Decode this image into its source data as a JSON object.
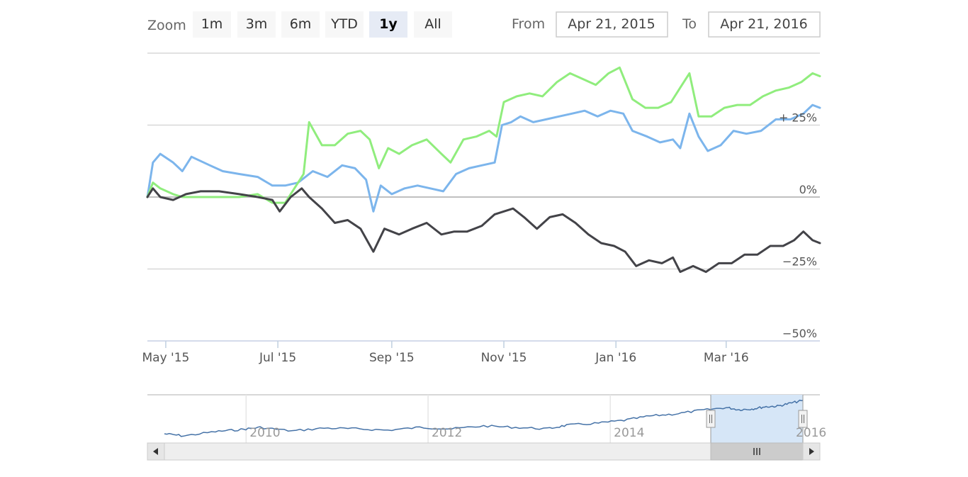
{
  "range_selector": {
    "zoom_label": "Zoom",
    "buttons": [
      {
        "label": "1m",
        "active": false
      },
      {
        "label": "3m",
        "active": false
      },
      {
        "label": "6m",
        "active": false
      },
      {
        "label": "YTD",
        "active": false
      },
      {
        "label": "1y",
        "active": true
      },
      {
        "label": "All",
        "active": false
      }
    ],
    "from_label": "From",
    "from_value": "Apr 21, 2015",
    "to_label": "To",
    "to_value": "Apr 21, 2016"
  },
  "navigator": {
    "x_tick_labels": [
      "2010",
      "2012",
      "2014",
      "2016"
    ],
    "series_color": "#4572a7",
    "mask_color": "#d6e6f7"
  },
  "chart_data": {
    "type": "line",
    "title": "",
    "x_range": [
      "2015-04-21",
      "2016-04-21"
    ],
    "ylim": [
      -50,
      50
    ],
    "y_ticks": [
      -50,
      -25,
      0,
      25
    ],
    "y_tick_labels": [
      "−50%",
      "−25%",
      "0%",
      "+ 25%"
    ],
    "x_tick_labels": [
      "May '15",
      "Jul '15",
      "Sep '15",
      "Nov '15",
      "Jan '16",
      "Mar '16"
    ],
    "x_tick_dates": [
      "2015-05-01",
      "2015-07-01",
      "2015-09-01",
      "2015-11-01",
      "2016-01-01",
      "2016-03-01"
    ],
    "grid": true,
    "series": [
      {
        "color": "#7cb5ec",
        "points": [
          [
            "2015-04-21",
            0
          ],
          [
            "2015-04-24",
            12
          ],
          [
            "2015-04-28",
            15
          ],
          [
            "2015-05-05",
            12
          ],
          [
            "2015-05-10",
            9
          ],
          [
            "2015-05-15",
            14
          ],
          [
            "2015-05-25",
            11
          ],
          [
            "2015-06-01",
            9
          ],
          [
            "2015-06-10",
            8
          ],
          [
            "2015-06-20",
            7
          ],
          [
            "2015-06-28",
            4
          ],
          [
            "2015-07-05",
            4
          ],
          [
            "2015-07-12",
            5
          ],
          [
            "2015-07-20",
            9
          ],
          [
            "2015-07-28",
            7
          ],
          [
            "2015-08-05",
            11
          ],
          [
            "2015-08-12",
            10
          ],
          [
            "2015-08-18",
            6
          ],
          [
            "2015-08-22",
            -5
          ],
          [
            "2015-08-26",
            4
          ],
          [
            "2015-09-01",
            1
          ],
          [
            "2015-09-08",
            3
          ],
          [
            "2015-09-15",
            4
          ],
          [
            "2015-09-22",
            3
          ],
          [
            "2015-09-29",
            2
          ],
          [
            "2015-10-06",
            8
          ],
          [
            "2015-10-13",
            10
          ],
          [
            "2015-10-20",
            11
          ],
          [
            "2015-10-27",
            12
          ],
          [
            "2015-10-31",
            25
          ],
          [
            "2015-11-05",
            26
          ],
          [
            "2015-11-10",
            28
          ],
          [
            "2015-11-17",
            26
          ],
          [
            "2015-11-24",
            27
          ],
          [
            "2015-12-01",
            28
          ],
          [
            "2015-12-08",
            29
          ],
          [
            "2015-12-15",
            30
          ],
          [
            "2015-12-22",
            28
          ],
          [
            "2015-12-29",
            30
          ],
          [
            "2016-01-05",
            29
          ],
          [
            "2016-01-10",
            23
          ],
          [
            "2016-01-18",
            21
          ],
          [
            "2016-01-25",
            19
          ],
          [
            "2016-02-01",
            20
          ],
          [
            "2016-02-05",
            17
          ],
          [
            "2016-02-10",
            29
          ],
          [
            "2016-02-15",
            21
          ],
          [
            "2016-02-20",
            16
          ],
          [
            "2016-02-27",
            18
          ],
          [
            "2016-03-05",
            23
          ],
          [
            "2016-03-12",
            22
          ],
          [
            "2016-03-20",
            23
          ],
          [
            "2016-03-28",
            27
          ],
          [
            "2016-04-05",
            27
          ],
          [
            "2016-04-12",
            29
          ],
          [
            "2016-04-17",
            32
          ],
          [
            "2016-04-21",
            31
          ]
        ]
      },
      {
        "color": "#90ed7d",
        "points": [
          [
            "2015-04-21",
            0
          ],
          [
            "2015-04-24",
            5
          ],
          [
            "2015-04-28",
            3
          ],
          [
            "2015-05-05",
            1
          ],
          [
            "2015-05-10",
            0
          ],
          [
            "2015-05-20",
            0
          ],
          [
            "2015-06-01",
            0
          ],
          [
            "2015-06-10",
            0
          ],
          [
            "2015-06-20",
            1
          ],
          [
            "2015-06-28",
            -2
          ],
          [
            "2015-07-05",
            -2
          ],
          [
            "2015-07-10",
            3
          ],
          [
            "2015-07-15",
            8
          ],
          [
            "2015-07-18",
            26
          ],
          [
            "2015-07-25",
            18
          ],
          [
            "2015-08-01",
            18
          ],
          [
            "2015-08-08",
            22
          ],
          [
            "2015-08-15",
            23
          ],
          [
            "2015-08-20",
            20
          ],
          [
            "2015-08-25",
            10
          ],
          [
            "2015-08-30",
            17
          ],
          [
            "2015-09-05",
            15
          ],
          [
            "2015-09-12",
            18
          ],
          [
            "2015-09-20",
            20
          ],
          [
            "2015-09-28",
            15
          ],
          [
            "2015-10-03",
            12
          ],
          [
            "2015-10-10",
            20
          ],
          [
            "2015-10-17",
            21
          ],
          [
            "2015-10-24",
            23
          ],
          [
            "2015-10-28",
            21
          ],
          [
            "2015-11-01",
            33
          ],
          [
            "2015-11-08",
            35
          ],
          [
            "2015-11-15",
            36
          ],
          [
            "2015-11-22",
            35
          ],
          [
            "2015-11-30",
            40
          ],
          [
            "2015-12-07",
            43
          ],
          [
            "2015-12-14",
            41
          ],
          [
            "2015-12-21",
            39
          ],
          [
            "2015-12-28",
            43
          ],
          [
            "2016-01-03",
            45
          ],
          [
            "2016-01-10",
            34
          ],
          [
            "2016-01-17",
            31
          ],
          [
            "2016-01-24",
            31
          ],
          [
            "2016-01-31",
            33
          ],
          [
            "2016-02-05",
            38
          ],
          [
            "2016-02-10",
            43
          ],
          [
            "2016-02-15",
            28
          ],
          [
            "2016-02-22",
            28
          ],
          [
            "2016-02-29",
            31
          ],
          [
            "2016-03-07",
            32
          ],
          [
            "2016-03-14",
            32
          ],
          [
            "2016-03-21",
            35
          ],
          [
            "2016-03-28",
            37
          ],
          [
            "2016-04-04",
            38
          ],
          [
            "2016-04-11",
            40
          ],
          [
            "2016-04-17",
            43
          ],
          [
            "2016-04-21",
            42
          ]
        ]
      },
      {
        "color": "#434348",
        "points": [
          [
            "2015-04-21",
            0
          ],
          [
            "2015-04-24",
            3
          ],
          [
            "2015-04-28",
            0
          ],
          [
            "2015-05-05",
            -1
          ],
          [
            "2015-05-12",
            1
          ],
          [
            "2015-05-20",
            2
          ],
          [
            "2015-05-30",
            2
          ],
          [
            "2015-06-10",
            1
          ],
          [
            "2015-06-20",
            0
          ],
          [
            "2015-06-28",
            -1
          ],
          [
            "2015-07-02",
            -5
          ],
          [
            "2015-07-08",
            0
          ],
          [
            "2015-07-14",
            3
          ],
          [
            "2015-07-18",
            0
          ],
          [
            "2015-07-25",
            -4
          ],
          [
            "2015-08-01",
            -9
          ],
          [
            "2015-08-08",
            -8
          ],
          [
            "2015-08-15",
            -11
          ],
          [
            "2015-08-22",
            -19
          ],
          [
            "2015-08-28",
            -11
          ],
          [
            "2015-09-05",
            -13
          ],
          [
            "2015-09-12",
            -11
          ],
          [
            "2015-09-20",
            -9
          ],
          [
            "2015-09-28",
            -13
          ],
          [
            "2015-10-05",
            -12
          ],
          [
            "2015-10-12",
            -12
          ],
          [
            "2015-10-20",
            -10
          ],
          [
            "2015-10-27",
            -6
          ],
          [
            "2015-11-01",
            -5
          ],
          [
            "2015-11-06",
            -4
          ],
          [
            "2015-11-12",
            -7
          ],
          [
            "2015-11-19",
            -11
          ],
          [
            "2015-11-26",
            -7
          ],
          [
            "2015-12-03",
            -6
          ],
          [
            "2015-12-10",
            -9
          ],
          [
            "2015-12-17",
            -13
          ],
          [
            "2015-12-24",
            -16
          ],
          [
            "2015-12-31",
            -17
          ],
          [
            "2016-01-06",
            -19
          ],
          [
            "2016-01-12",
            -24
          ],
          [
            "2016-01-19",
            -22
          ],
          [
            "2016-01-26",
            -23
          ],
          [
            "2016-02-01",
            -21
          ],
          [
            "2016-02-05",
            -26
          ],
          [
            "2016-02-12",
            -24
          ],
          [
            "2016-02-19",
            -26
          ],
          [
            "2016-02-26",
            -23
          ],
          [
            "2016-03-04",
            -23
          ],
          [
            "2016-03-11",
            -20
          ],
          [
            "2016-03-18",
            -20
          ],
          [
            "2016-03-25",
            -17
          ],
          [
            "2016-04-01",
            -17
          ],
          [
            "2016-04-07",
            -15
          ],
          [
            "2016-04-12",
            -12
          ],
          [
            "2016-04-17",
            -15
          ],
          [
            "2016-04-21",
            -16
          ]
        ]
      }
    ]
  }
}
